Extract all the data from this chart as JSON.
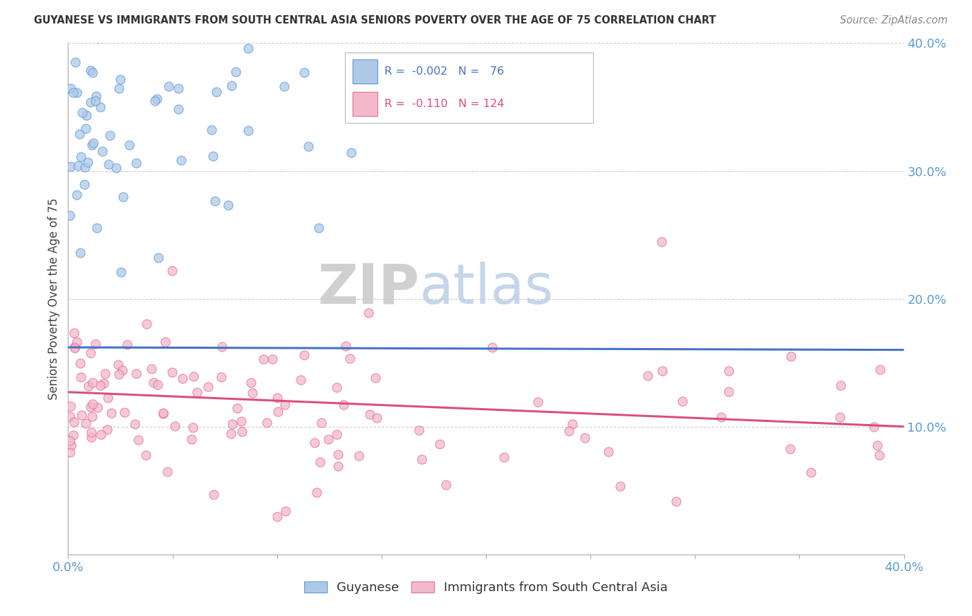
{
  "title": "GUYANESE VS IMMIGRANTS FROM SOUTH CENTRAL ASIA SENIORS POVERTY OVER THE AGE OF 75 CORRELATION CHART",
  "source": "Source: ZipAtlas.com",
  "ylabel": "Seniors Poverty Over the Age of 75",
  "xlim": [
    0.0,
    0.4
  ],
  "ylim": [
    0.0,
    0.4
  ],
  "ytick_vals": [
    0.1,
    0.2,
    0.3,
    0.4
  ],
  "ytick_labels": [
    "10.0%",
    "20.0%",
    "30.0%",
    "40.0%"
  ],
  "color_blue_fill": "#aec9e8",
  "color_blue_edge": "#5b9bd5",
  "color_pink_fill": "#f4b8cb",
  "color_pink_edge": "#e07090",
  "trend_blue": "#4472c4",
  "trend_pink": "#d94f7a",
  "background": "#ffffff",
  "grid_color": "#cccccc",
  "legend_r1": "R =  -0.002",
  "legend_n1": "N =  76",
  "legend_r2": "R =  -0.110",
  "legend_n2": "N = 124",
  "tick_color": "#5b9bd5",
  "title_color": "#333333",
  "source_color": "#888888"
}
